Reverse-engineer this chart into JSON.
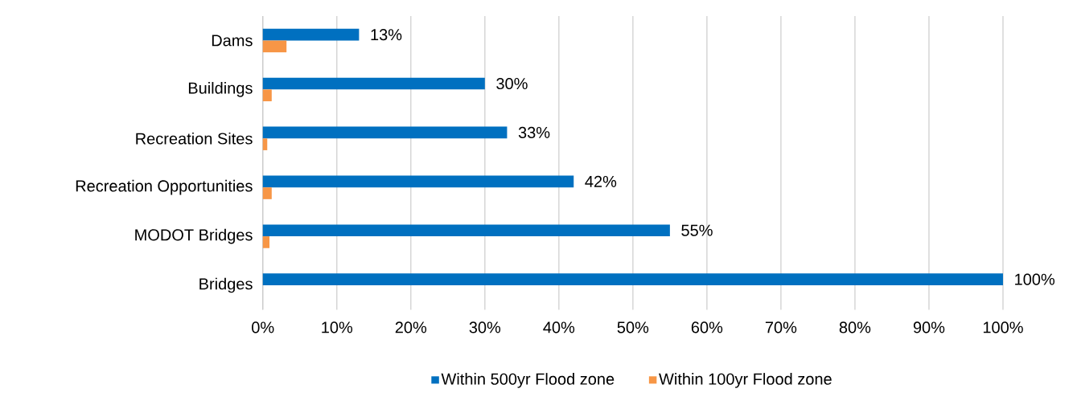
{
  "chart_data": {
    "type": "bar",
    "orientation": "horizontal",
    "categories": [
      "Dams",
      "Buildings",
      "Recreation Sites",
      "Recreation Opportunities",
      "MODOT Bridges",
      "Bridges"
    ],
    "series": [
      {
        "name": "Within 500yr Flood zone",
        "color": "#0070c0",
        "values": [
          13,
          30,
          33,
          42,
          55,
          100
        ],
        "value_labels": [
          "13%",
          "30%",
          "33%",
          "42%",
          "55%",
          "100%"
        ]
      },
      {
        "name": "Within 100yr Flood zone",
        "color": "#f79646",
        "values": [
          3.2,
          1.2,
          0.6,
          1.2,
          0.9,
          null
        ]
      }
    ],
    "xlim": [
      0,
      100
    ],
    "xticks": [
      {
        "value": 0,
        "label": "0%"
      },
      {
        "value": 10,
        "label": "10%"
      },
      {
        "value": 20,
        "label": "20%"
      },
      {
        "value": 30,
        "label": "30%"
      },
      {
        "value": 40,
        "label": "40%"
      },
      {
        "value": 50,
        "label": "50%"
      },
      {
        "value": 60,
        "label": "60%"
      },
      {
        "value": 70,
        "label": "70%"
      },
      {
        "value": 80,
        "label": "80%"
      },
      {
        "value": 90,
        "label": "90%"
      },
      {
        "value": 100,
        "label": "100%"
      }
    ],
    "grid": "x",
    "legend": "bottom"
  }
}
